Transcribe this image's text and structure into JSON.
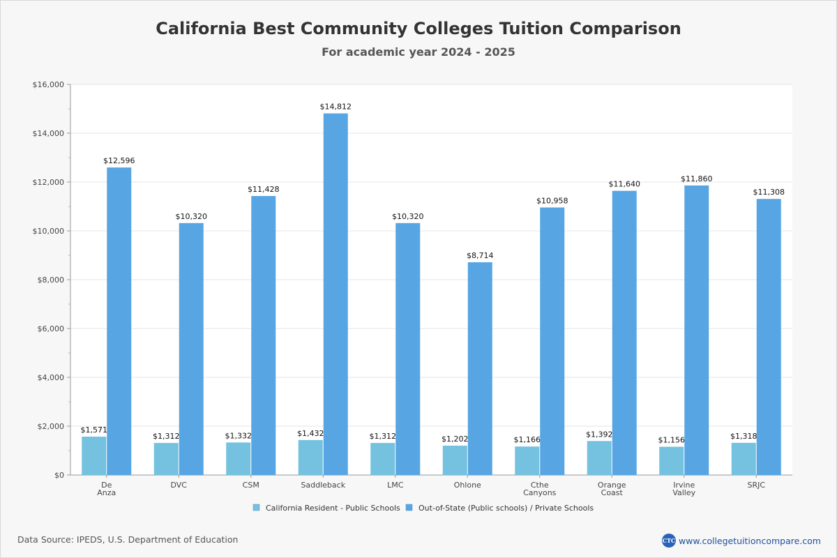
{
  "chart_data": {
    "type": "bar",
    "title": "California Best Community Colleges Tuition Comparison",
    "subtitle": "For academic year 2024 - 2025",
    "categories": [
      [
        "De",
        "Anza"
      ],
      [
        "DVC"
      ],
      [
        "CSM"
      ],
      [
        "Saddleback"
      ],
      [
        "LMC"
      ],
      [
        "Ohlone"
      ],
      [
        "Cthe",
        "Canyons"
      ],
      [
        "Orange",
        "Coast"
      ],
      [
        "Irvine",
        "Valley"
      ],
      [
        "SRJC"
      ]
    ],
    "series": [
      {
        "name": "California Resident - Public Schools",
        "color": "#74c1e0",
        "values": [
          1571,
          1312,
          1332,
          1432,
          1312,
          1202,
          1166,
          1392,
          1156,
          1318
        ],
        "labels": [
          "$1,571",
          "$1,312",
          "$1,332",
          "$1,432",
          "$1,312",
          "$1,202",
          "$1,166",
          "$1,392",
          "$1,156",
          "$1,318"
        ]
      },
      {
        "name": "Out-of-State (Public schools) / Private Schools",
        "color": "#57a5e3",
        "values": [
          12596,
          10320,
          11428,
          14812,
          10320,
          8714,
          10958,
          11640,
          11860,
          11308
        ],
        "labels": [
          "$12,596",
          "$10,320",
          "$11,428",
          "$14,812",
          "$10,320",
          "$8,714",
          "$10,958",
          "$11,640",
          "$11,860",
          "$11,308"
        ]
      }
    ],
    "ylim": [
      0,
      16000
    ],
    "yticks": [
      0,
      2000,
      4000,
      6000,
      8000,
      10000,
      12000,
      14000,
      16000
    ],
    "ytick_labels": [
      "$0",
      "$2,000",
      "$4,000",
      "$6,000",
      "$8,000",
      "$10,000",
      "$12,000",
      "$14,000",
      "$16,000"
    ],
    "grid": true,
    "legend_position": "bottom-center"
  },
  "footer": {
    "source": "Data Source: IPEDS, U.S. Department of Education",
    "logo_text": "CTC",
    "site": "www.collegetuitioncompare.com"
  }
}
